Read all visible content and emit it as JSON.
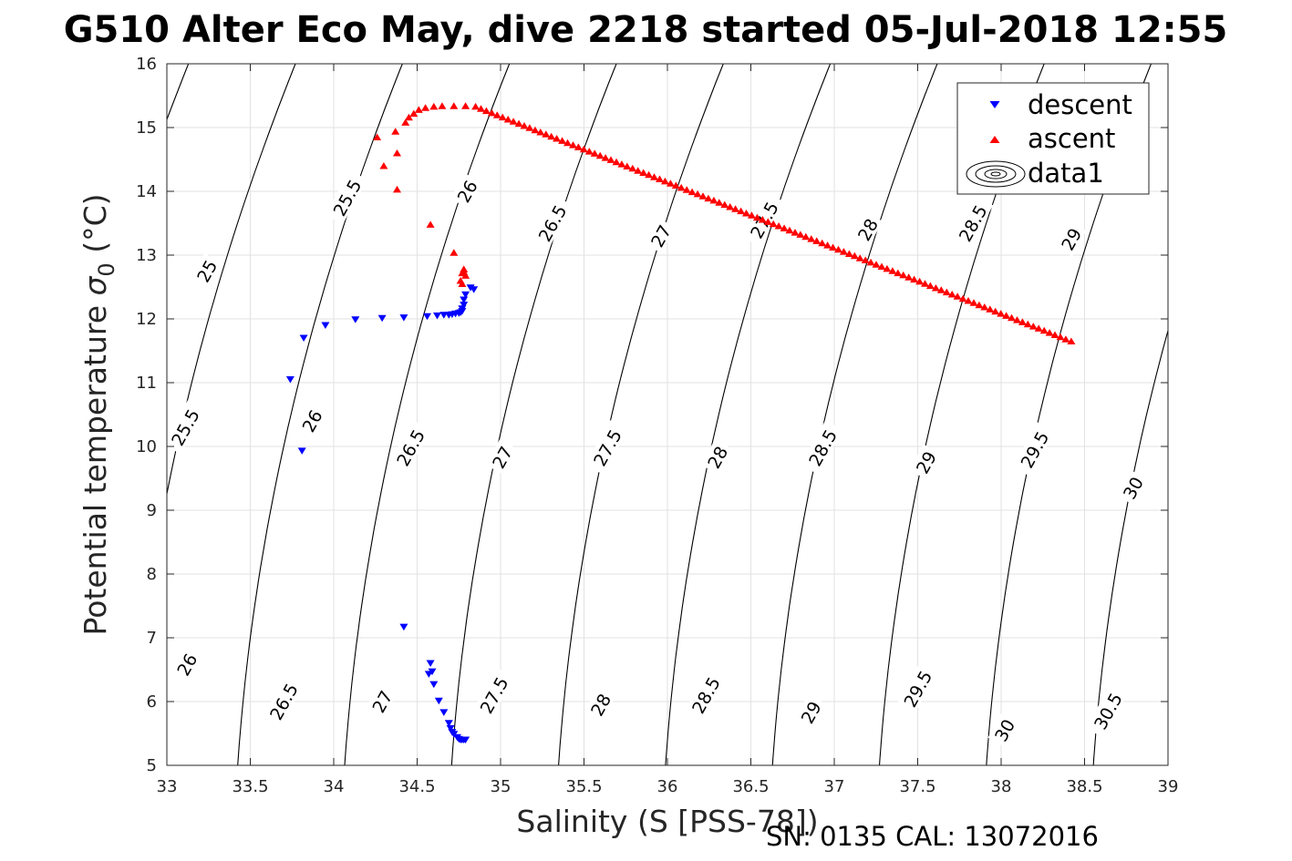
{
  "chart_data": {
    "type": "scatter",
    "title": "G510 Alter Eco May, dive 2218 started 05-Jul-2018 12:55",
    "xlabel": "Salinity (S [PSS-78])",
    "ylabel_main": "Potential temperature ",
    "ylabel_sym": "σ",
    "ylabel_sub": "0",
    "ylabel_unit": " (°C)",
    "xlim": [
      33,
      39
    ],
    "ylim": [
      5,
      16
    ],
    "x_ticks": [
      33,
      33.5,
      34,
      34.5,
      35,
      35.5,
      36,
      36.5,
      37,
      37.5,
      38,
      38.5,
      39
    ],
    "x_tick_labels": [
      "33",
      "33.5",
      "34",
      "34.5",
      "35",
      "35.5",
      "36",
      "36.5",
      "37",
      "37.5",
      "38",
      "38.5",
      "39"
    ],
    "y_ticks": [
      5,
      6,
      7,
      8,
      9,
      10,
      11,
      12,
      13,
      14,
      15,
      16
    ],
    "y_tick_labels": [
      "5",
      "6",
      "7",
      "8",
      "9",
      "10",
      "11",
      "12",
      "13",
      "14",
      "15",
      "16"
    ],
    "grid": true,
    "legend": {
      "placement": "top-right",
      "entries": [
        "descent",
        "ascent",
        "data1"
      ]
    },
    "series": [
      {
        "name": "descent",
        "marker": "triangle-down",
        "color": "#0000ff",
        "x": [
          34.84,
          34.82,
          34.79,
          34.78,
          34.78,
          34.77,
          34.77,
          34.76,
          34.75,
          34.73,
          34.71,
          34.69,
          34.66,
          34.62,
          34.56,
          34.42,
          34.29,
          34.13,
          33.95,
          33.82,
          33.74,
          33.81,
          34.42,
          34.58,
          34.57,
          34.59,
          34.6,
          34.63,
          34.66,
          34.69,
          34.7,
          34.71,
          34.72,
          34.74,
          34.75,
          34.76,
          34.77,
          34.78,
          34.79
        ],
        "y": [
          12.46,
          12.49,
          12.38,
          12.3,
          12.22,
          12.16,
          12.12,
          12.1,
          12.09,
          12.08,
          12.07,
          12.06,
          12.06,
          12.05,
          12.04,
          12.02,
          12.01,
          11.99,
          11.9,
          11.7,
          11.05,
          9.93,
          7.17,
          6.6,
          6.43,
          6.47,
          6.27,
          6.01,
          5.83,
          5.66,
          5.58,
          5.52,
          5.49,
          5.44,
          5.41,
          5.4,
          5.4,
          5.4,
          5.4
        ]
      },
      {
        "name": "ascent",
        "marker": "triangle-up",
        "color": "#ff0000",
        "x": [
          34.78,
          34.77,
          34.76,
          34.77,
          34.79,
          34.78,
          34.72,
          34.58,
          34.38,
          34.38,
          34.3,
          34.26,
          34.37,
          34.43,
          34.45,
          34.48,
          34.51,
          34.55,
          34.6,
          34.65,
          34.72,
          34.79,
          34.85,
          38.42
        ],
        "y": [
          12.78,
          12.72,
          12.6,
          12.55,
          12.68,
          12.74,
          13.04,
          13.48,
          14.03,
          14.6,
          14.4,
          14.85,
          14.94,
          15.08,
          15.16,
          15.22,
          15.28,
          15.31,
          15.33,
          15.34,
          15.34,
          15.34,
          15.33,
          11.65
        ]
      }
    ],
    "contour_levels": [
      "25",
      "25.5",
      "26",
      "26.5",
      "27",
      "27.5",
      "28",
      "28.5",
      "29",
      "29.5",
      "30",
      "30.5"
    ],
    "contour_labels": [
      {
        "text": "25",
        "s": 33.24,
        "t": 12.75
      },
      {
        "text": "25.5",
        "s": 33.11,
        "t": 10.3
      },
      {
        "text": "25.5",
        "s": 34.08,
        "t": 13.9
      },
      {
        "text": "26",
        "s": 33.12,
        "t": 6.58
      },
      {
        "text": "26",
        "s": 33.87,
        "t": 10.4
      },
      {
        "text": "26",
        "s": 34.8,
        "t": 14.0
      },
      {
        "text": "26.5",
        "s": 33.7,
        "t": 6.0
      },
      {
        "text": "26.5",
        "s": 34.46,
        "t": 9.98
      },
      {
        "text": "26.5",
        "s": 35.31,
        "t": 13.5
      },
      {
        "text": "27",
        "s": 34.29,
        "t": 6.0
      },
      {
        "text": "27",
        "s": 35.01,
        "t": 9.83
      },
      {
        "text": "27",
        "s": 35.96,
        "t": 13.3
      },
      {
        "text": "27.5",
        "s": 34.96,
        "t": 6.1
      },
      {
        "text": "27.5",
        "s": 35.64,
        "t": 9.98
      },
      {
        "text": "27.5",
        "s": 36.58,
        "t": 13.55
      },
      {
        "text": "28",
        "s": 35.6,
        "t": 5.95
      },
      {
        "text": "28",
        "s": 36.3,
        "t": 9.83
      },
      {
        "text": "28",
        "s": 37.2,
        "t": 13.4
      },
      {
        "text": "28.5",
        "s": 36.23,
        "t": 6.1
      },
      {
        "text": "28.5",
        "s": 36.93,
        "t": 9.98
      },
      {
        "text": "28.5",
        "s": 37.83,
        "t": 13.5
      },
      {
        "text": "29",
        "s": 36.86,
        "t": 5.83
      },
      {
        "text": "29",
        "s": 37.55,
        "t": 9.75
      },
      {
        "text": "29",
        "s": 38.42,
        "t": 13.25
      },
      {
        "text": "29.5",
        "s": 37.5,
        "t": 6.2
      },
      {
        "text": "29.5",
        "s": 38.2,
        "t": 9.95
      },
      {
        "text": "30",
        "s": 38.02,
        "t": 5.55
      },
      {
        "text": "30",
        "s": 38.79,
        "t": 9.35
      },
      {
        "text": "30.5",
        "s": 38.64,
        "t": 5.85
      }
    ]
  },
  "footer": {
    "serial": "SN: 0135  CAL: 13072016"
  }
}
